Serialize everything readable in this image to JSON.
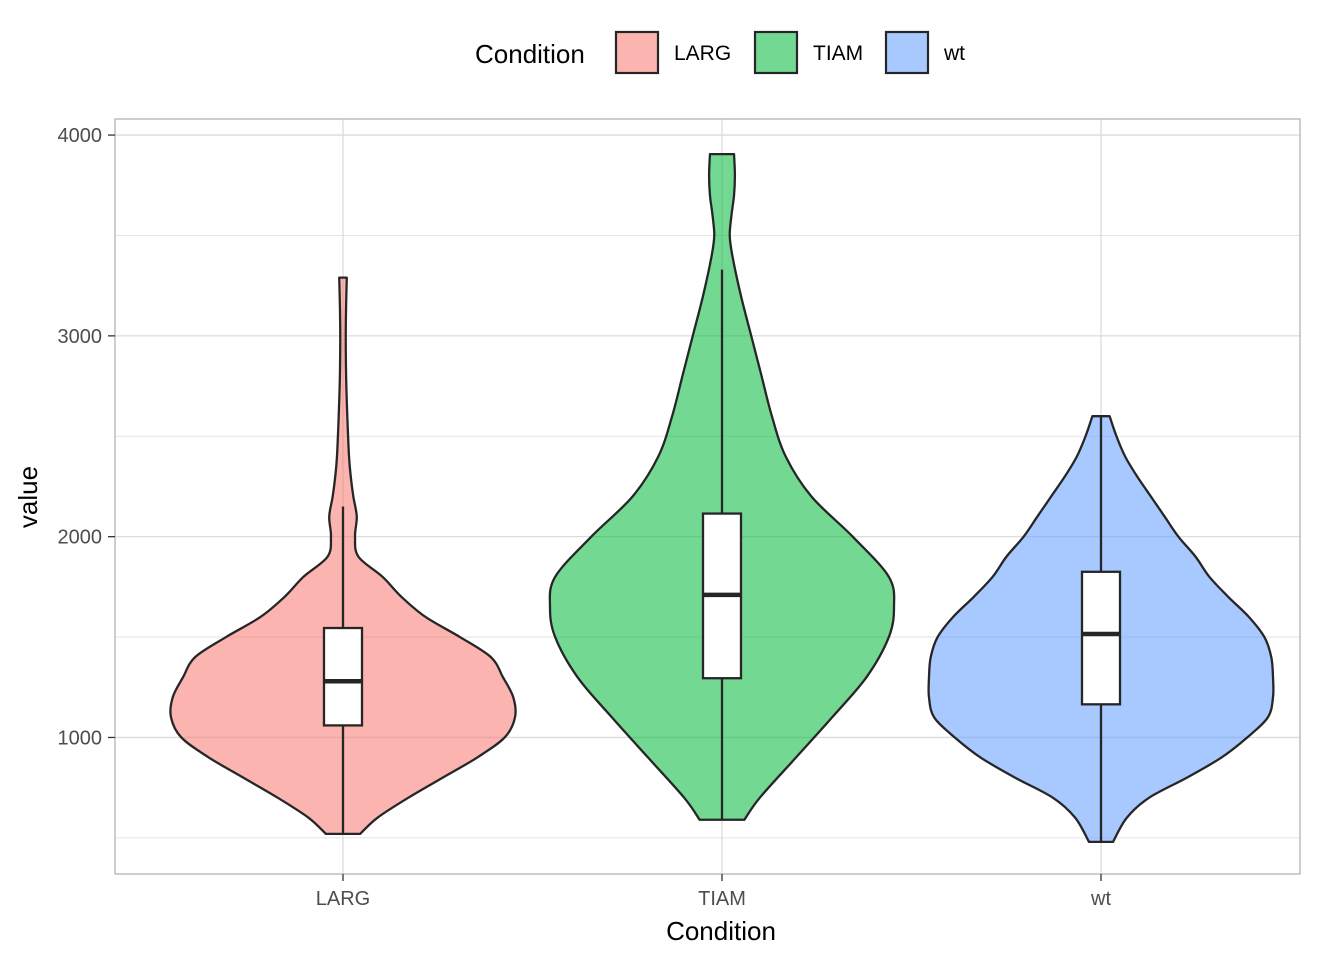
{
  "chart_data": {
    "type": "violin",
    "xlabel": "Condition",
    "ylabel": "value",
    "categories": [
      "LARG",
      "TIAM",
      "wt"
    ],
    "y_ticks": [
      1000,
      2000,
      3000,
      4000
    ],
    "y_tick_labels": [
      "1000",
      "2000",
      "3000",
      "4000"
    ],
    "ylim": [
      320,
      4080
    ],
    "grid": true,
    "legend": {
      "title": "Condition",
      "placement": "top",
      "entries": [
        "LARG",
        "TIAM",
        "wt"
      ]
    },
    "colors": {
      "LARG": "#F8766D",
      "TIAM": "#00BA38",
      "wt": "#619CFF",
      "outline": "#262626",
      "grid": "#dcdcdc",
      "panel_border": "#b3b3b3"
    },
    "series": [
      {
        "name": "LARG",
        "box": {
          "whisker_low": 520,
          "q1": 1060,
          "median": 1280,
          "q3": 1545,
          "whisker_high": 2150
        },
        "violin_range": [
          520,
          3290
        ],
        "density_profile": [
          [
            520,
            0.1
          ],
          [
            600,
            0.2
          ],
          [
            700,
            0.38
          ],
          [
            800,
            0.58
          ],
          [
            900,
            0.78
          ],
          [
            1000,
            0.94
          ],
          [
            1100,
            1.0
          ],
          [
            1200,
            0.99
          ],
          [
            1300,
            0.93
          ],
          [
            1400,
            0.86
          ],
          [
            1500,
            0.68
          ],
          [
            1600,
            0.48
          ],
          [
            1700,
            0.34
          ],
          [
            1800,
            0.23
          ],
          [
            1900,
            0.09
          ],
          [
            2000,
            0.07
          ],
          [
            2100,
            0.08
          ],
          [
            2200,
            0.06
          ],
          [
            2300,
            0.045
          ],
          [
            2400,
            0.035
          ],
          [
            2600,
            0.025
          ],
          [
            2800,
            0.018
          ],
          [
            3000,
            0.016
          ],
          [
            3150,
            0.018
          ],
          [
            3290,
            0.022
          ]
        ]
      },
      {
        "name": "TIAM",
        "box": {
          "whisker_low": 590,
          "q1": 1295,
          "median": 1710,
          "q3": 2115,
          "whisker_high": 3330
        },
        "violin_range": [
          590,
          3905
        ],
        "density_profile": [
          [
            590,
            0.13
          ],
          [
            700,
            0.22
          ],
          [
            900,
            0.43
          ],
          [
            1100,
            0.64
          ],
          [
            1300,
            0.84
          ],
          [
            1500,
            0.97
          ],
          [
            1650,
            1.0
          ],
          [
            1800,
            0.97
          ],
          [
            2000,
            0.76
          ],
          [
            2200,
            0.52
          ],
          [
            2400,
            0.37
          ],
          [
            2600,
            0.29
          ],
          [
            2800,
            0.23
          ],
          [
            3000,
            0.17
          ],
          [
            3200,
            0.11
          ],
          [
            3400,
            0.06
          ],
          [
            3500,
            0.045
          ],
          [
            3600,
            0.055
          ],
          [
            3700,
            0.07
          ],
          [
            3800,
            0.075
          ],
          [
            3905,
            0.07
          ]
        ]
      },
      {
        "name": "wt",
        "box": {
          "whisker_low": 480,
          "q1": 1165,
          "median": 1515,
          "q3": 1825,
          "whisker_high": 2600
        },
        "violin_range": [
          480,
          2600
        ],
        "density_profile": [
          [
            480,
            0.07
          ],
          [
            600,
            0.15
          ],
          [
            700,
            0.28
          ],
          [
            800,
            0.5
          ],
          [
            900,
            0.7
          ],
          [
            1000,
            0.85
          ],
          [
            1100,
            0.97
          ],
          [
            1200,
            1.0
          ],
          [
            1300,
            1.0
          ],
          [
            1400,
            0.99
          ],
          [
            1500,
            0.95
          ],
          [
            1600,
            0.86
          ],
          [
            1700,
            0.74
          ],
          [
            1800,
            0.63
          ],
          [
            1900,
            0.55
          ],
          [
            2000,
            0.45
          ],
          [
            2100,
            0.37
          ],
          [
            2200,
            0.29
          ],
          [
            2300,
            0.21
          ],
          [
            2400,
            0.14
          ],
          [
            2500,
            0.09
          ],
          [
            2600,
            0.05
          ]
        ]
      }
    ]
  }
}
